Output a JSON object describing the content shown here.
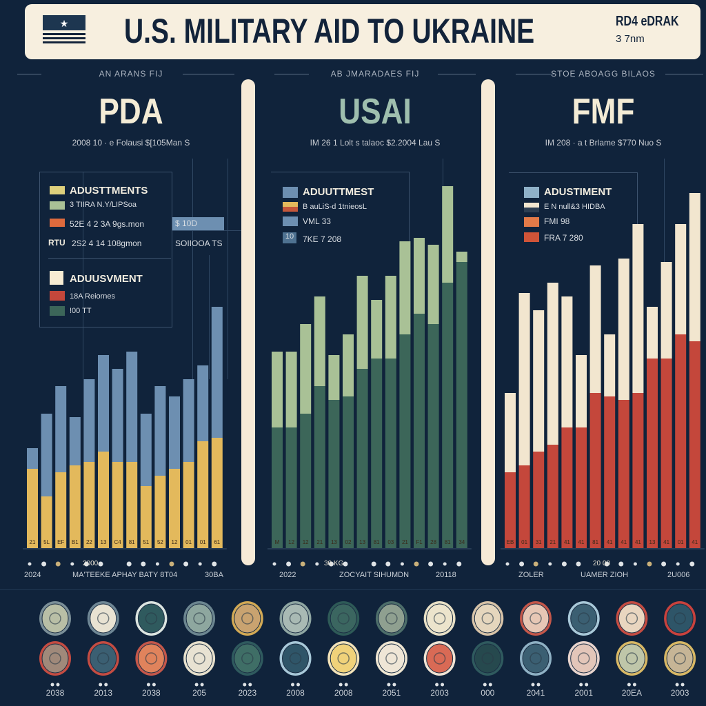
{
  "header": {
    "title": "U.S. MILITARY AID TO UKRAINE",
    "corner_line1": "RD4 eDRAK",
    "corner_line2": "3 7nm"
  },
  "panels": [
    {
      "kicker": "AN ARANS FIJ",
      "title": "PDA",
      "note": "2008 10 · e Folausi $[105Man S",
      "legend1": {
        "heading": "ADUSTTMENTS",
        "items": [
          "3 TIIRA N.Y/LIPSoa",
          "52E 4 2 3A 9gs.mon",
          "2S2 4 14 108gmon"
        ],
        "prefix": "RTU"
      },
      "tag": "$ 10D",
      "tag_note": "SOIIOOA TS",
      "legend2": {
        "heading": "ADUUSVMENT",
        "items": [
          "18A Reiornes",
          "!00 TT"
        ]
      },
      "dots_label": "2000",
      "captions": [
        "2024",
        "MA'TEEKE APHAY BATY 8T04",
        "30BA"
      ]
    },
    {
      "kicker": "AB JMARADAES FIJ",
      "title": "USAI",
      "note": "IM 26 1 Lolt s talaoc $2.2004 Lau S",
      "legend1": {
        "heading": "ADUUTTMEST",
        "items": [
          "B auLiS-d 1tnieosL",
          "VML 33",
          "7KE 7 208"
        ],
        "prefix": "10"
      },
      "dots_label": "30 KG",
      "captions": [
        "2022",
        "ZOCYAIT SIHUMDN",
        "20118"
      ]
    },
    {
      "kicker": "STOE ABOAGG BILAOS",
      "title": "FMF",
      "note": "IM 208 · a t Brlame $770 Nuo S",
      "legend1": {
        "heading": "ADUSTIMENT",
        "items": [
          "E N null&3 HIDBA",
          "FMI 98",
          "FRA 7 280"
        ]
      },
      "dots_label": "20 00",
      "captions": [
        "ZOLER",
        "UAMER ZIOH",
        "2U006"
      ]
    }
  ],
  "chart_data": [
    {
      "type": "bar",
      "stacked": true,
      "title": "PDA",
      "ylim": [
        0,
        110
      ],
      "series": [
        {
          "name": "base",
          "color": "#e3b95c",
          "values": [
            23,
            15,
            22,
            24,
            25,
            28,
            25,
            25,
            18,
            21,
            23,
            25,
            31,
            32
          ]
        },
        {
          "name": "top",
          "color": "#6d8fb1",
          "values": [
            6,
            24,
            25,
            14,
            24,
            28,
            27,
            32,
            21,
            26,
            21,
            24,
            22,
            38
          ]
        }
      ],
      "bar_labels": [
        "21",
        "5L",
        "EF",
        "B1",
        "22",
        "13",
        "C4",
        "81",
        "51",
        "52",
        "12",
        "01",
        "01",
        "61"
      ]
    },
    {
      "type": "bar",
      "stacked": true,
      "title": "USAI",
      "ylim": [
        0,
        110
      ],
      "series": [
        {
          "name": "base",
          "color": "#3c6659",
          "values": [
            35,
            35,
            39,
            47,
            43,
            44,
            52,
            55,
            55,
            62,
            68,
            65,
            77,
            83
          ]
        },
        {
          "name": "top",
          "color": "#a9c196",
          "values": [
            22,
            22,
            26,
            26,
            13,
            18,
            27,
            17,
            24,
            27,
            22,
            23,
            28,
            3
          ]
        }
      ],
      "bar_labels": [
        "M",
        "12",
        "12",
        "21",
        "13",
        "02",
        "13",
        "81",
        "03",
        "21",
        "F1",
        "28",
        "81",
        "34"
      ]
    },
    {
      "type": "bar",
      "stacked": true,
      "title": "FMF",
      "ylim": [
        0,
        110
      ],
      "series": [
        {
          "name": "base",
          "color": "#c4473b",
          "values": [
            22,
            24,
            28,
            30,
            35,
            35,
            45,
            44,
            43,
            45,
            55,
            55,
            62,
            60
          ]
        },
        {
          "name": "top",
          "color": "#f2e6cf",
          "values": [
            23,
            50,
            41,
            47,
            38,
            21,
            37,
            18,
            41,
            49,
            15,
            28,
            32,
            43
          ]
        }
      ],
      "bar_labels": [
        "EB",
        "01",
        "31",
        "21",
        "41",
        "41",
        "81",
        "41",
        "41",
        "41",
        "13",
        "41",
        "01",
        "41"
      ]
    }
  ],
  "colors": {
    "bg": "#10233b",
    "banner": "#f7efdf",
    "pda_title": "#f4ecd6",
    "usai_title": "#9fbfae",
    "fmf_title": "#f4ecd6"
  },
  "badges": {
    "labels": [
      "2038",
      "2013",
      "2038",
      "205",
      "2023",
      "2008",
      "2008",
      "2051",
      "2003",
      "000",
      "2041",
      "2001",
      "20EA",
      "2003"
    ],
    "row1_rings": [
      "#7b8f98",
      "#6f8795",
      "#dbe4e0",
      "#6c8690",
      "#d2a955",
      "#8fa6a2",
      "#2e5a57",
      "#4d6e6a",
      "#e8e0c6",
      "#d7c3a8",
      "#c4574a",
      "#a8c8d8",
      "#c44c42",
      "#c9423d"
    ],
    "row1_fills": [
      "#b9bfa6",
      "#e8e2d2",
      "#2f5a5e",
      "#8ea79f",
      "#c9a370",
      "#a9bab4",
      "#3b6660",
      "#8fa090",
      "#ece4cc",
      "#e5d6bd",
      "#e7c7b5",
      "#3b5f72",
      "#e9d6c0",
      "#2e5568"
    ],
    "row2_rings": [
      "#c44c42",
      "#c44c42",
      "#c4574a",
      "#e7e0cc",
      "#2f5a5e",
      "#a8c8d8",
      "#f2e2b8",
      "#efe6d2",
      "#f0e4d4",
      "#2f5a5e",
      "#8fb1c4",
      "#e7d3cc",
      "#d8b865",
      "#d8b865"
    ],
    "row2_fills": [
      "#a0897a",
      "#3b5f72",
      "#e0835c",
      "#e8e2d2",
      "#3f6e66",
      "#2f5568",
      "#f0d27a",
      "#efe6d6",
      "#d96a55",
      "#26494e",
      "#3b5f72",
      "#e3c6b9",
      "#bfc6a9",
      "#c6b596"
    ]
  }
}
